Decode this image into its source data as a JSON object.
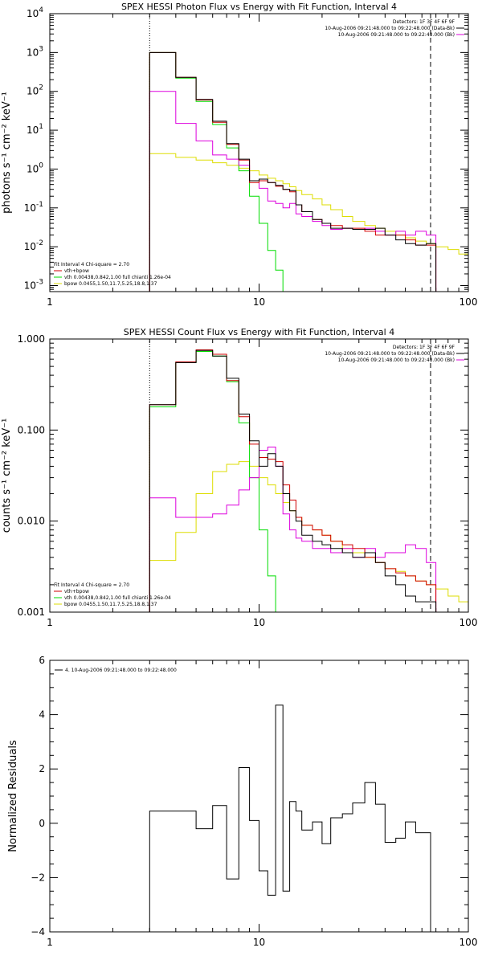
{
  "colors": {
    "data": "#000000",
    "total": "#d00000",
    "vth": "#00dd00",
    "bpow": "#dddd00",
    "bkg": "#dd00dd"
  },
  "chart_data": [
    {
      "type": "line",
      "title": "SPEX HESSI Photon Flux vs Energy with Fit Function, Interval 4",
      "ylabel": "photons s⁻¹ cm⁻² keV⁻¹",
      "xscale": "log",
      "yscale": "log",
      "xlim": [
        1,
        100
      ],
      "ylim": [
        0.0007,
        10000
      ],
      "xticks": [
        "1",
        "10",
        "100"
      ],
      "yticks": [
        {
          "base": "10",
          "exp": "-3",
          "value": 0.001
        },
        {
          "base": "10",
          "exp": "-2",
          "value": 0.01
        },
        {
          "base": "10",
          "exp": "-1",
          "value": 0.1
        },
        {
          "base": "10",
          "exp": "0",
          "value": 1
        },
        {
          "base": "10",
          "exp": "1",
          "value": 10
        },
        {
          "base": "10",
          "exp": "2",
          "value": 100
        },
        {
          "base": "10",
          "exp": "3",
          "value": 1000
        },
        {
          "base": "10",
          "exp": "4",
          "value": 10000
        }
      ],
      "vlines": [
        {
          "x": 3,
          "style": "dotted"
        },
        {
          "x": 66,
          "style": "dashed"
        }
      ],
      "legend_tr": [
        {
          "text": "Detectors: 1F 3F 4F 6F 9F",
          "color": ""
        },
        {
          "text": "10-Aug-2006 09:21:48.000 to 09:22:48.000 (Data-Bk)",
          "color": "#000000"
        },
        {
          "text": "10-Aug-2006 09:21:48.000 to 09:22:48.000 (Bk)",
          "color": "#dd00dd"
        }
      ],
      "legend_bl": [
        {
          "text": "Fit Interval  4   Chi-square = 2.70",
          "color": ""
        },
        {
          "text": "vth+bpow",
          "color": "#d00000"
        },
        {
          "text": "vth 0.00438,0.842,1.00   full chianti 1.26e-04",
          "color": "#00dd00"
        },
        {
          "text": "bpow 0.0455,1.50,11.7,5.25,18.8,1.37",
          "color": "#dddd00"
        }
      ],
      "edges": [
        3,
        4,
        5,
        6,
        7,
        8,
        9,
        10,
        11,
        12,
        13,
        14,
        15,
        16,
        18,
        20,
        22,
        25,
        28,
        32,
        36,
        40,
        45,
        50,
        56,
        63,
        70,
        80,
        90,
        100
      ],
      "series": [
        {
          "key": "data",
          "values": [
            1000,
            230,
            62,
            17,
            4.5,
            1.8,
            0.5,
            0.55,
            0.45,
            0.38,
            0.3,
            0.28,
            0.12,
            0.08,
            0.05,
            0.04,
            0.03,
            0.03,
            0.028,
            0.028,
            0.03,
            0.02,
            0.015,
            0.012,
            0.011,
            0.012
          ]
        },
        {
          "key": "total",
          "values": [
            1000,
            230,
            60,
            16,
            4.3,
            1.7,
            0.45,
            0.5,
            0.45,
            0.36,
            0.3,
            0.26,
            0.12,
            0.08,
            0.05,
            0.04,
            0.035,
            0.03,
            0.03,
            0.025,
            0.02,
            0.02,
            0.02,
            0.015,
            0.011,
            0.011
          ]
        },
        {
          "key": "vth",
          "values": [
            1000,
            220,
            55,
            14,
            3.5,
            0.9,
            0.2,
            0.04,
            0.008,
            0.0025,
            0.0007
          ]
        },
        {
          "key": "bpow",
          "values": [
            2.5,
            2.0,
            1.7,
            1.45,
            1.25,
            1.05,
            0.9,
            0.7,
            0.58,
            0.5,
            0.42,
            0.35,
            0.28,
            0.22,
            0.17,
            0.12,
            0.09,
            0.06,
            0.045,
            0.035,
            0.03,
            0.025,
            0.02,
            0.017,
            0.014,
            0.012,
            0.01,
            0.0085,
            0.0065
          ]
        },
        {
          "key": "bkg",
          "values": [
            100,
            15,
            5.3,
            2.3,
            1.8,
            1.25,
            0.5,
            0.32,
            0.15,
            0.13,
            0.1,
            0.13,
            0.07,
            0.06,
            0.045,
            0.035,
            0.028,
            0.03,
            0.028,
            0.03,
            0.025,
            0.02,
            0.025,
            0.02,
            0.025,
            0.02
          ]
        }
      ]
    },
    {
      "type": "line",
      "title": "SPEX HESSI Count Flux vs Energy with Fit Function, Interval 4",
      "ylabel": "counts s⁻¹ cm⁻² keV⁻¹",
      "xscale": "log",
      "yscale": "log",
      "xlim": [
        1,
        100
      ],
      "ylim": [
        0.001,
        1
      ],
      "xticks": [
        "1",
        "10",
        "100"
      ],
      "yticks": [
        {
          "base": "0.001",
          "exp": "",
          "value": 0.001
        },
        {
          "base": "0.010",
          "exp": "",
          "value": 0.01
        },
        {
          "base": "0.100",
          "exp": "",
          "value": 0.1
        },
        {
          "base": "1.000",
          "exp": "",
          "value": 1
        }
      ],
      "vlines": [
        {
          "x": 3,
          "style": "dotted"
        },
        {
          "x": 66,
          "style": "dashed"
        }
      ],
      "legend_tr": [
        {
          "text": "Detectors: 1F 3F 4F 6F 9F",
          "color": ""
        },
        {
          "text": "10-Aug-2006 09:21:48.000 to 09:22:48.000 (Data-Bk)",
          "color": "#000000"
        },
        {
          "text": "10-Aug-2006 09:21:48.000 to 09:22:48.000 (Bk)",
          "color": "#dd00dd"
        }
      ],
      "legend_bl": [
        {
          "text": "Fit Interval  4   Chi-square = 2.70",
          "color": ""
        },
        {
          "text": "vth+bpow",
          "color": "#d00000"
        },
        {
          "text": "vth 0.00438,0.842,1.00   full chianti 1.26e-04",
          "color": "#00dd00"
        },
        {
          "text": "bpow 0.0455,1.50,11.7,5.25,18.8,1.37",
          "color": "#dddd00"
        }
      ],
      "edges": [
        3,
        4,
        5,
        6,
        7,
        8,
        9,
        10,
        11,
        12,
        13,
        14,
        15,
        16,
        18,
        20,
        22,
        25,
        28,
        32,
        36,
        40,
        45,
        50,
        56,
        63,
        70,
        80,
        90,
        100
      ],
      "series": [
        {
          "key": "data",
          "values": [
            0.19,
            0.55,
            0.75,
            0.65,
            0.37,
            0.15,
            0.076,
            0.04,
            0.055,
            0.04,
            0.02,
            0.013,
            0.01,
            0.007,
            0.006,
            0.0055,
            0.005,
            0.0045,
            0.004,
            0.0045,
            0.0035,
            0.0025,
            0.002,
            0.0015,
            0.0013,
            0.0013
          ]
        },
        {
          "key": "total",
          "values": [
            0.19,
            0.56,
            0.76,
            0.68,
            0.35,
            0.14,
            0.07,
            0.05,
            0.048,
            0.045,
            0.025,
            0.017,
            0.011,
            0.009,
            0.008,
            0.007,
            0.006,
            0.0055,
            0.005,
            0.004,
            0.0035,
            0.003,
            0.0027,
            0.0025,
            0.0022,
            0.002
          ]
        },
        {
          "key": "vth",
          "values": [
            0.18,
            0.55,
            0.73,
            0.65,
            0.34,
            0.12,
            0.03,
            0.008,
            0.0025,
            0.001
          ]
        },
        {
          "key": "bpow",
          "values": [
            0.0037,
            0.0075,
            0.02,
            0.035,
            0.042,
            0.045,
            0.04,
            0.03,
            0.025,
            0.02,
            0.016,
            0.013,
            0.011,
            0.009,
            0.008,
            0.007,
            0.006,
            0.005,
            0.0045,
            0.004,
            0.0035,
            0.003,
            0.0028,
            0.0025,
            0.0022,
            0.002,
            0.0018,
            0.0015,
            0.0013
          ]
        },
        {
          "key": "bkg",
          "values": [
            0.018,
            0.011,
            0.011,
            0.012,
            0.015,
            0.022,
            0.03,
            0.06,
            0.065,
            0.04,
            0.012,
            0.008,
            0.0065,
            0.006,
            0.005,
            0.005,
            0.0045,
            0.005,
            0.004,
            0.005,
            0.004,
            0.0045,
            0.0045,
            0.0055,
            0.005,
            0.0035
          ]
        }
      ]
    },
    {
      "type": "line",
      "title": "",
      "ylabel": "Normalized Residuals",
      "xscale": "log",
      "yscale": "linear",
      "xlim": [
        1,
        100
      ],
      "ylim": [
        -4,
        6
      ],
      "xticks": [
        "1",
        "10",
        "100"
      ],
      "yticks": [
        {
          "base": "−4",
          "exp": "",
          "value": -4
        },
        {
          "base": "−2",
          "exp": "",
          "value": -2
        },
        {
          "base": "0",
          "exp": "",
          "value": 0
        },
        {
          "base": "2",
          "exp": "",
          "value": 2
        },
        {
          "base": "4",
          "exp": "",
          "value": 4
        },
        {
          "base": "6",
          "exp": "",
          "value": 6
        }
      ],
      "vlines": [],
      "legend_tl": [
        {
          "text": "4. 10-Aug-2006 09:21:48.000 to 09:22:48.000",
          "color": "#000000"
        }
      ],
      "edges": [
        3,
        4,
        5,
        6,
        7,
        8,
        9,
        10,
        11,
        12,
        13,
        14,
        15,
        16,
        18,
        20,
        22,
        25,
        28,
        32,
        36,
        40,
        45,
        50,
        56,
        63,
        66
      ],
      "series": [
        {
          "key": "data",
          "values": [
            0.45,
            0.45,
            -0.2,
            0.65,
            -2.05,
            2.05,
            0.1,
            -1.75,
            -2.65,
            4.35,
            -2.5,
            0.8,
            0.45,
            -0.25,
            0.05,
            -0.75,
            0.2,
            0.35,
            0.75,
            1.5,
            0.7,
            -0.7,
            -0.55,
            0.05,
            -0.35,
            -0.35
          ]
        }
      ]
    }
  ]
}
